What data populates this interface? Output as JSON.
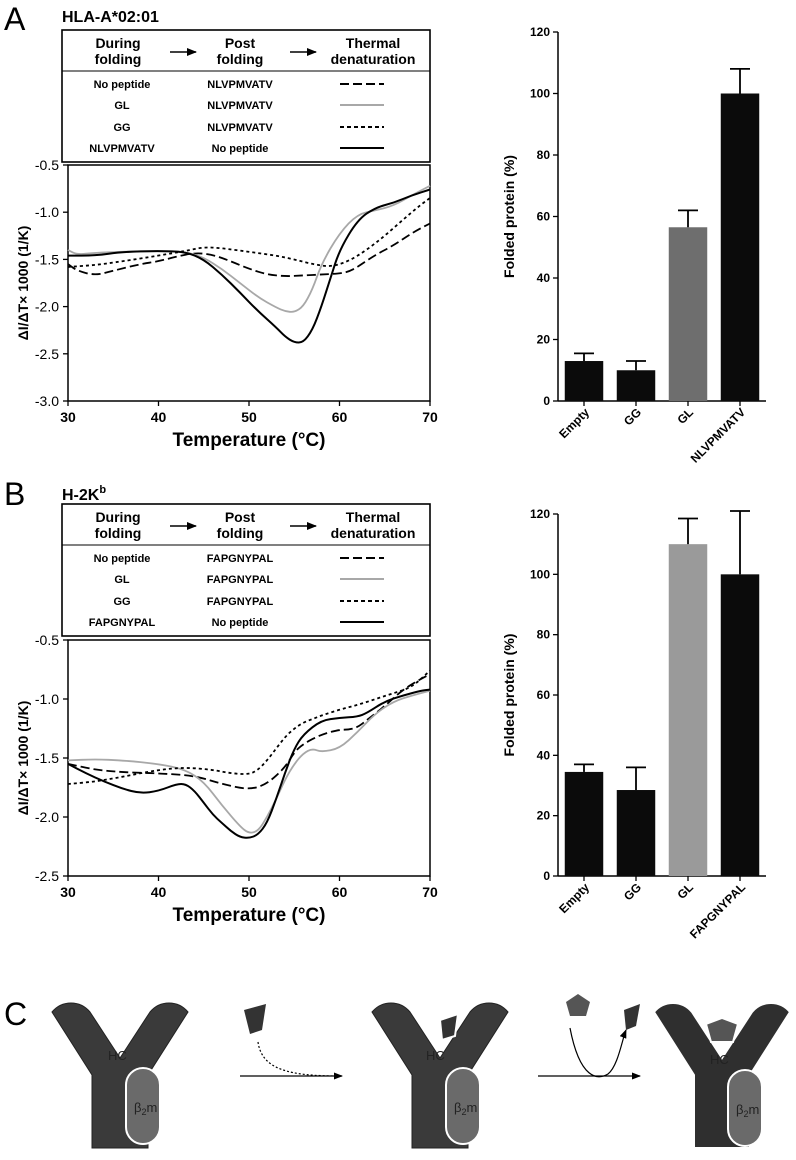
{
  "panels": {
    "A": {
      "letter": "A",
      "title": "HLA-A*02:01"
    },
    "B": {
      "letter": "B",
      "title_main": "H-2K",
      "title_sup": "b"
    },
    "C": {
      "letter": "C"
    }
  },
  "legend_headers": {
    "h1_line1": "During",
    "h1_line2": "folding",
    "h2_line1": "Post",
    "h2_line2": "folding",
    "h3_line1": "Thermal",
    "h3_line2": "denaturation"
  },
  "legend_A": [
    {
      "during": "No peptide",
      "post": "NLVPMVATV",
      "style": "long-dash"
    },
    {
      "during": "GL",
      "post": "NLVPMVATV",
      "style": "gray-solid"
    },
    {
      "during": "GG",
      "post": "NLVPMVATV",
      "style": "short-dash"
    },
    {
      "during": "NLVPMVATV",
      "post": "No peptide",
      "style": "solid"
    }
  ],
  "legend_B": [
    {
      "during": "No peptide",
      "post": "FAPGNYPAL",
      "style": "long-dash"
    },
    {
      "during": "GL",
      "post": "FAPGNYPAL",
      "style": "gray-solid"
    },
    {
      "during": "GG",
      "post": "FAPGNYPAL",
      "style": "short-dash"
    },
    {
      "during": "FAPGNYPAL",
      "post": "No peptide",
      "style": "solid"
    }
  ],
  "colors": {
    "black": "#000000",
    "gray_line": "#a8a8a8",
    "bar_black": "#0b0b0b",
    "bar_gray": "#6e6e6e",
    "light_gray_bar": "#9a9a9a",
    "hc": "#3a3a3a",
    "b2m": "#6a6a6a",
    "peptide_dark": "#333333",
    "peptide_mid": "#555555"
  },
  "chart_data": [
    {
      "id": "A-melting",
      "type": "line",
      "title": "",
      "xlabel": "Temperature (°C)",
      "ylabel": "ΔI/ΔT× 1000 (1/K)",
      "xlim": [
        30,
        70
      ],
      "ylim": [
        -3.0,
        -0.5
      ],
      "xticks": [
        "30",
        "40",
        "50",
        "60",
        "70"
      ],
      "yticks": [
        "-3.0",
        "-2.5",
        "-2.0",
        "-1.5",
        "-1.0",
        "-0.5"
      ],
      "series": [
        {
          "name": "No peptide → NLVPMVATV",
          "style": "long-dash",
          "x": [
            30,
            31,
            33,
            35,
            38,
            40,
            42,
            44,
            46,
            48,
            50,
            52,
            54,
            56,
            58,
            60,
            61,
            62,
            64,
            66,
            68,
            70
          ],
          "y": [
            -1.55,
            -1.62,
            -1.67,
            -1.62,
            -1.55,
            -1.52,
            -1.47,
            -1.43,
            -1.45,
            -1.52,
            -1.6,
            -1.66,
            -1.68,
            -1.67,
            -1.66,
            -1.65,
            -1.63,
            -1.58,
            -1.45,
            -1.35,
            -1.22,
            -1.12
          ]
        },
        {
          "name": "GL → NLVPMVATV",
          "style": "gray-solid",
          "x": [
            30,
            31,
            33,
            36,
            40,
            43,
            45,
            47,
            49,
            51,
            53,
            54,
            55,
            56,
            57,
            58,
            60,
            62,
            64,
            66,
            68,
            70
          ],
          "y": [
            -1.4,
            -1.45,
            -1.43,
            -1.42,
            -1.41,
            -1.42,
            -1.48,
            -1.6,
            -1.75,
            -1.9,
            -2.01,
            -2.05,
            -2.06,
            -2.0,
            -1.82,
            -1.55,
            -1.22,
            -1.02,
            -0.98,
            -0.93,
            -0.82,
            -0.72
          ]
        },
        {
          "name": "GG → NLVPMVATV",
          "style": "short-dash",
          "x": [
            30,
            33,
            36,
            40,
            43,
            45,
            47,
            50,
            53,
            55,
            57,
            59,
            61,
            63,
            65,
            67,
            69,
            70
          ],
          "y": [
            -1.58,
            -1.56,
            -1.52,
            -1.46,
            -1.41,
            -1.37,
            -1.38,
            -1.42,
            -1.46,
            -1.5,
            -1.55,
            -1.58,
            -1.52,
            -1.4,
            -1.25,
            -1.08,
            -0.92,
            -0.85
          ]
        },
        {
          "name": "NLVPMVATV → No peptide",
          "style": "solid",
          "x": [
            30,
            33,
            36,
            40,
            43,
            45,
            47,
            49,
            51,
            53,
            54,
            55,
            56,
            57,
            58,
            59,
            60,
            62,
            64,
            66,
            68,
            70
          ],
          "y": [
            -1.46,
            -1.46,
            -1.42,
            -1.41,
            -1.42,
            -1.5,
            -1.66,
            -1.85,
            -2.05,
            -2.22,
            -2.32,
            -2.38,
            -2.38,
            -2.25,
            -2.0,
            -1.7,
            -1.4,
            -1.08,
            -0.95,
            -0.9,
            -0.82,
            -0.76
          ]
        }
      ]
    },
    {
      "id": "A-bars",
      "type": "bar",
      "title": "",
      "xlabel": "",
      "ylabel": "Folded protein (%)",
      "ylim": [
        0,
        120
      ],
      "yticks": [
        "0",
        "20",
        "40",
        "60",
        "80",
        "100",
        "120"
      ],
      "categories": [
        "Empty",
        "GG",
        "GL",
        "NLVPMVATV"
      ],
      "values": [
        13,
        10,
        56.5,
        100
      ],
      "errors": [
        2.5,
        3,
        5.5,
        8
      ],
      "bar_colors": [
        "#0b0b0b",
        "#0b0b0b",
        "#6e6e6e",
        "#0b0b0b"
      ]
    },
    {
      "id": "B-melting",
      "type": "line",
      "title": "",
      "xlabel": "Temperature (°C)",
      "ylabel": "ΔI/ΔT× 1000 (1/K)",
      "xlim": [
        30,
        70
      ],
      "ylim": [
        -2.5,
        -0.5
      ],
      "xticks": [
        "30",
        "40",
        "50",
        "60",
        "70"
      ],
      "yticks": [
        "-2.5",
        "-2.0",
        "-1.5",
        "-1.0",
        "-0.5"
      ],
      "series": [
        {
          "name": "No peptide → FAPGNYPAL",
          "style": "long-dash",
          "x": [
            30,
            33,
            36,
            40,
            44,
            47,
            50,
            52,
            54,
            55,
            56,
            58,
            60,
            61,
            62,
            63,
            65,
            67,
            69,
            70
          ],
          "y": [
            -1.55,
            -1.6,
            -1.62,
            -1.63,
            -1.65,
            -1.72,
            -1.77,
            -1.72,
            -1.58,
            -1.45,
            -1.38,
            -1.3,
            -1.26,
            -1.26,
            -1.24,
            -1.18,
            -1.06,
            -0.92,
            -0.83,
            -0.79
          ]
        },
        {
          "name": "GL → FAPGNYPAL",
          "style": "gray-solid",
          "x": [
            30,
            33,
            36,
            40,
            43,
            45,
            47,
            49,
            50,
            51,
            52,
            53,
            54,
            55,
            56,
            57,
            58,
            60,
            62,
            64,
            66,
            68,
            70
          ],
          "y": [
            -1.52,
            -1.51,
            -1.52,
            -1.55,
            -1.6,
            -1.7,
            -1.9,
            -2.08,
            -2.14,
            -2.12,
            -2.0,
            -1.85,
            -1.68,
            -1.55,
            -1.46,
            -1.42,
            -1.45,
            -1.42,
            -1.28,
            -1.12,
            -1.02,
            -0.97,
            -0.93
          ]
        },
        {
          "name": "GG → FAPGNYPAL",
          "style": "short-dash",
          "x": [
            30,
            33,
            36,
            40,
            43,
            46,
            48,
            50,
            51,
            52,
            53,
            54,
            55,
            56,
            57,
            58,
            60,
            62,
            64,
            66,
            68,
            70
          ],
          "y": [
            -1.72,
            -1.7,
            -1.66,
            -1.6,
            -1.58,
            -1.6,
            -1.63,
            -1.64,
            -1.6,
            -1.52,
            -1.42,
            -1.32,
            -1.25,
            -1.2,
            -1.17,
            -1.14,
            -1.09,
            -1.05,
            -1.0,
            -0.95,
            -0.9,
            -0.76
          ]
        },
        {
          "name": "FAPGNYPAL → No peptide",
          "style": "solid",
          "x": [
            30,
            32,
            34,
            36,
            38,
            40,
            42,
            43,
            44,
            45,
            46,
            47,
            48,
            49,
            50,
            51,
            52,
            53,
            54,
            55,
            56,
            58,
            60,
            62,
            63,
            65,
            67,
            69,
            70
          ],
          "y": [
            -1.55,
            -1.63,
            -1.7,
            -1.76,
            -1.8,
            -1.78,
            -1.72,
            -1.72,
            -1.78,
            -1.88,
            -1.98,
            -2.05,
            -2.12,
            -2.17,
            -2.18,
            -2.15,
            -2.05,
            -1.85,
            -1.62,
            -1.42,
            -1.3,
            -1.18,
            -1.16,
            -1.15,
            -1.12,
            -1.02,
            -0.97,
            -0.93,
            -0.92
          ]
        }
      ]
    },
    {
      "id": "B-bars",
      "type": "bar",
      "title": "",
      "xlabel": "",
      "ylabel": "Folded protein (%)",
      "ylim": [
        0,
        120
      ],
      "yticks": [
        "0",
        "20",
        "40",
        "60",
        "80",
        "100",
        "120"
      ],
      "categories": [
        "Empty",
        "GG",
        "GL",
        "FAPGNYPAL"
      ],
      "values": [
        34.5,
        28.5,
        110,
        100
      ],
      "errors": [
        2.5,
        7.5,
        8.5,
        21
      ],
      "bar_colors": [
        "#0b0b0b",
        "#0b0b0b",
        "#9a9a9a",
        "#0b0b0b"
      ]
    }
  ],
  "diagram": {
    "hc_label": "HC",
    "b2m_label_main": "β",
    "b2m_label_sub": "2",
    "b2m_label_end": "m"
  }
}
